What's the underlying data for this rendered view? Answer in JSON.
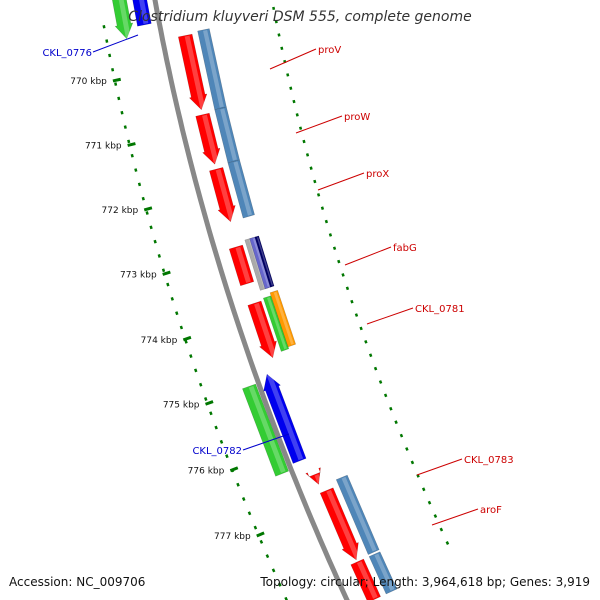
{
  "title": "Clostridium kluyveri DSM 555, complete genome",
  "footer": {
    "accession": "Accession: NC_009706",
    "stats": "Topology: circular; Length: 3,964,618 bp; Genes: 3,919"
  },
  "colors": {
    "red": "#ff0000",
    "steelblue": "#4f86b8",
    "green": "#33cc33",
    "blue": "#0000ee",
    "orange": "#ff9900",
    "purple": "#6666cc",
    "navy": "#000066",
    "gray": "#aaaaaa",
    "backbone": "#888888",
    "tick": "#007700",
    "label_red": "#cc0000",
    "label_blue": "#0000cc"
  },
  "ticks": [
    {
      "label": "770 kbp"
    },
    {
      "label": "771 kbp"
    },
    {
      "label": "772 kbp"
    },
    {
      "label": "773 kbp"
    },
    {
      "label": "774 kbp"
    },
    {
      "label": "775 kbp"
    },
    {
      "label": "776 kbp"
    },
    {
      "label": "777 kbp"
    }
  ],
  "gene_labels": [
    {
      "text": "CKL_0776",
      "color": "label_blue"
    },
    {
      "text": "proV",
      "color": "label_red"
    },
    {
      "text": "proW",
      "color": "label_red"
    },
    {
      "text": "proX",
      "color": "label_red"
    },
    {
      "text": "fabG",
      "color": "label_red"
    },
    {
      "text": "CKL_0781",
      "color": "label_red"
    },
    {
      "text": "CKL_0782",
      "color": "label_blue"
    },
    {
      "text": "CKL_0783",
      "color": "label_red"
    },
    {
      "text": "aroF",
      "color": "label_red"
    }
  ]
}
